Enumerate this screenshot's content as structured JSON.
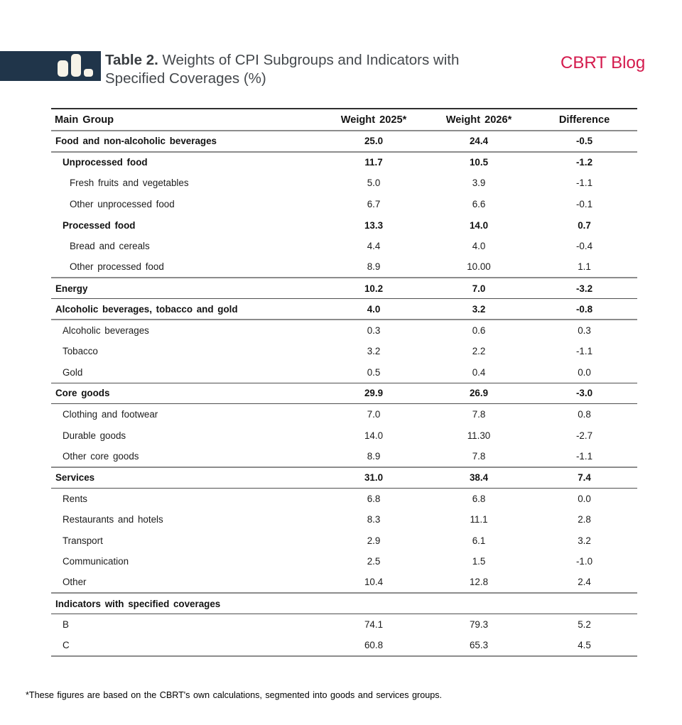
{
  "header": {
    "table_label": "Table 2.",
    "title_line1": "Weights of CPI Subgroups and Indicators with",
    "title_line2": "Specified Coverages (%)",
    "brand": "CBRT Blog",
    "brand_color": "#d41a4d",
    "icon": "bar-chart-icon",
    "icon_bg_color": "#20354a",
    "icon_bar_color": "#f7f3e8"
  },
  "table": {
    "columns": [
      "Main Group",
      "Weight 2025*",
      "Weight 2026*",
      "Difference"
    ],
    "rows": [
      {
        "label": "Food and non-alcoholic beverages",
        "level": 0,
        "bold": true,
        "w2025": "25.0",
        "w2026": "24.4",
        "diff": "-0.5"
      },
      {
        "label": "Unprocessed food",
        "level": 1,
        "bold": true,
        "w2025": "11.7",
        "w2026": "10.5",
        "diff": "-1.2"
      },
      {
        "label": "Fresh fruits and vegetables",
        "level": 2,
        "bold": false,
        "w2025": "5.0",
        "w2026": "3.9",
        "diff": "-1.1"
      },
      {
        "label": "Other unprocessed food",
        "level": 2,
        "bold": false,
        "w2025": "6.7",
        "w2026": "6.6",
        "diff": "-0.1"
      },
      {
        "label": "Processed food",
        "level": 1,
        "bold": true,
        "w2025": "13.3",
        "w2026": "14.0",
        "diff": "0.7"
      },
      {
        "label": "Bread and cereals",
        "level": 2,
        "bold": false,
        "w2025": "4.4",
        "w2026": "4.0",
        "diff": "-0.4"
      },
      {
        "label": "Other processed food",
        "level": 2,
        "bold": false,
        "w2025": "8.9",
        "w2026": "10.00",
        "diff": "1.1"
      },
      {
        "label": "Energy",
        "level": 0,
        "bold": true,
        "w2025": "10.2",
        "w2026": "7.0",
        "diff": "-3.2"
      },
      {
        "label": "Alcoholic beverages, tobacco and gold",
        "level": 0,
        "bold": true,
        "w2025": "4.0",
        "w2026": "3.2",
        "diff": "-0.8"
      },
      {
        "label": "Alcoholic beverages",
        "level": 1,
        "bold": false,
        "w2025": "0.3",
        "w2026": "0.6",
        "diff": "0.3"
      },
      {
        "label": "Tobacco",
        "level": 1,
        "bold": false,
        "w2025": "3.2",
        "w2026": "2.2",
        "diff": "-1.1"
      },
      {
        "label": "Gold",
        "level": 1,
        "bold": false,
        "w2025": "0.5",
        "w2026": "0.4",
        "diff": "0.0"
      },
      {
        "label": "Core goods",
        "level": 0,
        "bold": true,
        "w2025": "29.9",
        "w2026": "26.9",
        "diff": "-3.0"
      },
      {
        "label": "Clothing and footwear",
        "level": 1,
        "bold": false,
        "w2025": "7.0",
        "w2026": "7.8",
        "diff": "0.8"
      },
      {
        "label": "Durable goods",
        "level": 1,
        "bold": false,
        "w2025": "14.0",
        "w2026": "11.30",
        "diff": "-2.7"
      },
      {
        "label": "Other core goods",
        "level": 1,
        "bold": false,
        "w2025": "8.9",
        "w2026": "7.8",
        "diff": "-1.1"
      },
      {
        "label": "Services",
        "level": 0,
        "bold": true,
        "w2025": "31.0",
        "w2026": "38.4",
        "diff": "7.4"
      },
      {
        "label": "Rents",
        "level": 1,
        "bold": false,
        "w2025": "6.8",
        "w2026": "6.8",
        "diff": "0.0"
      },
      {
        "label": "Restaurants and hotels",
        "level": 1,
        "bold": false,
        "w2025": "8.3",
        "w2026": "11.1",
        "diff": "2.8"
      },
      {
        "label": "Transport",
        "level": 1,
        "bold": false,
        "w2025": "2.9",
        "w2026": "6.1",
        "diff": "3.2"
      },
      {
        "label": "Communication",
        "level": 1,
        "bold": false,
        "w2025": "2.5",
        "w2026": "1.5",
        "diff": "-1.0"
      },
      {
        "label": "Other",
        "level": 1,
        "bold": false,
        "w2025": "10.4",
        "w2026": "12.8",
        "diff": "2.4"
      },
      {
        "label": "Indicators with specified coverages",
        "level": 0,
        "bold": true,
        "w2025": "",
        "w2026": "",
        "diff": ""
      },
      {
        "label": "B",
        "level": 1,
        "bold": false,
        "w2025": "74.1",
        "w2026": "79.3",
        "diff": "5.2"
      },
      {
        "label": "C",
        "level": 1,
        "bold": false,
        "w2025": "60.8",
        "w2026": "65.3",
        "diff": "4.5"
      }
    ]
  },
  "footnote": "*These figures are based on the CBRT's own calculations, segmented into goods and services groups."
}
